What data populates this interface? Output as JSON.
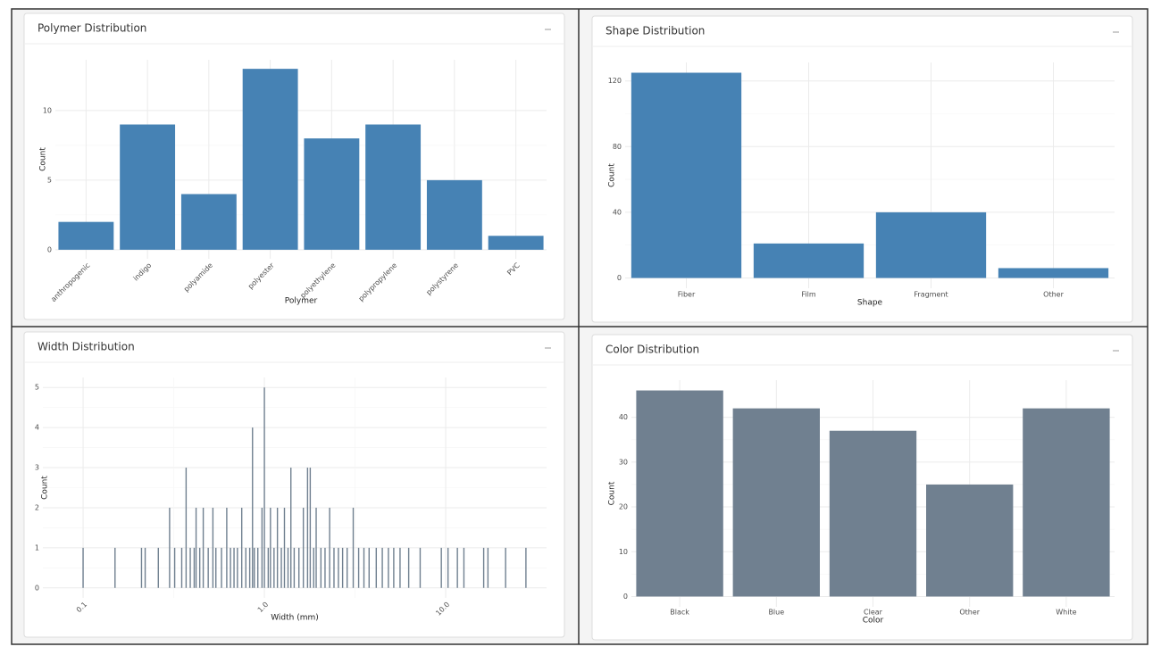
{
  "chart_data": [
    {
      "type": "bar",
      "title": "Polymer Distribution",
      "xlabel": "Polymer",
      "ylabel": "Count",
      "categories": [
        "anthropogenic",
        "indigo",
        "polyamide",
        "polyester",
        "polyethylene",
        "polypropylene",
        "polystyrene",
        "PVC"
      ],
      "values": [
        2,
        9,
        4,
        13,
        8,
        9,
        5,
        1
      ],
      "color": "#4682b4",
      "ylim": [
        -0.65,
        13.65
      ],
      "yticks": [
        0,
        5,
        10
      ],
      "grid": true,
      "x_label_rotation": -45
    },
    {
      "type": "bar",
      "title": "Shape Distribution",
      "xlabel": "Shape",
      "ylabel": "Count",
      "categories": [
        "Fiber",
        "Film",
        "Fragment",
        "Other"
      ],
      "values": [
        125,
        21,
        40,
        6
      ],
      "color": "#4682b4",
      "ylim": [
        -6.25,
        131.25
      ],
      "yticks": [
        0,
        40,
        80,
        120
      ],
      "grid": true
    },
    {
      "type": "bar",
      "title": "Width Distribution",
      "xlabel": "Width (mm)",
      "ylabel": "Count",
      "xscale": "log",
      "x": [
        0.1,
        0.15,
        0.21,
        0.22,
        0.26,
        0.3,
        0.32,
        0.35,
        0.37,
        0.39,
        0.41,
        0.42,
        0.44,
        0.46,
        0.49,
        0.52,
        0.54,
        0.58,
        0.62,
        0.65,
        0.68,
        0.71,
        0.75,
        0.79,
        0.83,
        0.86,
        0.88,
        0.92,
        0.97,
        1.0,
        1.05,
        1.08,
        1.13,
        1.18,
        1.24,
        1.29,
        1.35,
        1.4,
        1.46,
        1.55,
        1.64,
        1.73,
        1.79,
        1.87,
        1.93,
        2.05,
        2.16,
        2.29,
        2.42,
        2.56,
        2.7,
        2.86,
        3.09,
        3.31,
        3.54,
        3.78,
        4.14,
        4.47,
        4.83,
        5.17,
        5.6,
        6.25,
        7.23,
        9.46,
        10.3,
        11.6,
        12.6,
        16.2,
        17.1,
        21.4,
        27.7
      ],
      "values": [
        1,
        1,
        1,
        1,
        1,
        2,
        1,
        1,
        3,
        1,
        1,
        2,
        1,
        2,
        1,
        2,
        1,
        1,
        2,
        1,
        1,
        1,
        2,
        1,
        1,
        4,
        1,
        1,
        2,
        5,
        1,
        2,
        1,
        2,
        1,
        2,
        1,
        3,
        1,
        1,
        2,
        3,
        3,
        1,
        2,
        1,
        1,
        2,
        1,
        1,
        1,
        1,
        2,
        1,
        1,
        1,
        1,
        1,
        1,
        1,
        1,
        1,
        1,
        1,
        1,
        1,
        1,
        1,
        1,
        1,
        1
      ],
      "color": "#708090",
      "xlim": [
        0.06,
        36
      ],
      "xticks": [
        0.1,
        {
          "value": 1,
          "label": "1.0"
        },
        {
          "value": 10,
          "label": "10.0"
        }
      ],
      "ylim": [
        -0.25,
        5.25
      ],
      "yticks": [
        0,
        1,
        2,
        3,
        4,
        5
      ],
      "grid": true,
      "x_label_rotation": -45
    },
    {
      "type": "bar",
      "title": "Color Distribution",
      "xlabel": "Color",
      "ylabel": "Count",
      "categories": [
        "Black",
        "Blue",
        "Clear",
        "Other",
        "White"
      ],
      "values": [
        46,
        42,
        37,
        25,
        42
      ],
      "color": "#708090",
      "ylim": [
        -2.3,
        48.3
      ],
      "yticks": [
        0,
        10,
        20,
        30,
        40
      ],
      "grid": true
    }
  ]
}
